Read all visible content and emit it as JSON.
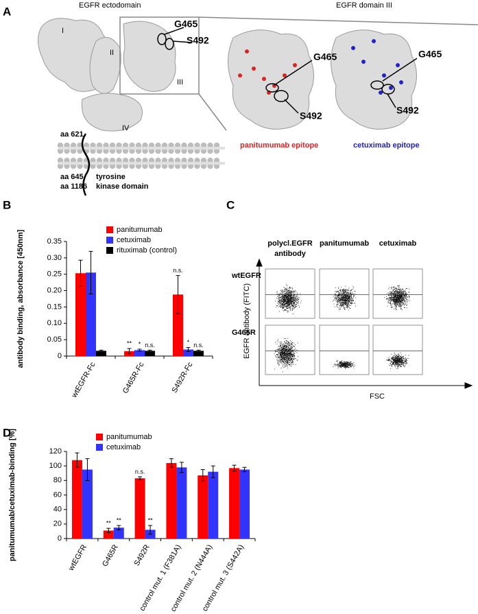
{
  "panel_labels": [
    "A",
    "B",
    "C",
    "D"
  ],
  "panel_a": {
    "left_title": "EGFR ectodomain",
    "right_title": "EGFR domain III",
    "domains": [
      "I",
      "II",
      "III",
      "IV"
    ],
    "box_labels": [
      "G465",
      "S492"
    ],
    "membrane_labels": [
      "aa 621",
      "aa 645",
      "aa 1186",
      "tyrosine",
      "kinase domain"
    ],
    "panitumumab_view": {
      "labels": [
        "G465",
        "S492"
      ],
      "caption": "panitumumab epitope"
    },
    "cetuximab_view": {
      "labels": [
        "G465",
        "S492"
      ],
      "caption": "cetuximab epitope"
    }
  },
  "panel_c": {
    "column_headers": [
      "polycl.EGFR",
      "antibody",
      "panitumumab",
      "cetuximab"
    ],
    "row_labels": [
      "wtEGFR",
      "G465R"
    ],
    "y_label": "EGFR antibody (FITC)",
    "x_label": "FSC"
  },
  "chart_data": [
    {
      "type": "bar",
      "y_label": "antibody binding, absorbance [450nm]",
      "categories": [
        "wtEGFR-Fc",
        "G465R-Fc",
        "S492R-Fc"
      ],
      "series": [
        {
          "name": "panitumumab",
          "color": "#ff0000",
          "values": [
            0.253,
            0.015,
            0.188
          ],
          "errors": [
            0.04,
            0.008,
            0.058
          ],
          "annotations": [
            null,
            "**",
            "n.s."
          ]
        },
        {
          "name": "cetuximab",
          "color": "#3333ff",
          "values": [
            0.255,
            0.018,
            0.02
          ],
          "errors": [
            0.065,
            0.003,
            0.006
          ],
          "annotations": [
            null,
            "*",
            "*"
          ]
        },
        {
          "name": "rituximab (control)",
          "color": "#000000",
          "values": [
            0.016,
            0.016,
            0.016
          ],
          "errors": [
            0.002,
            0.002,
            0.002
          ],
          "annotations": [
            null,
            "n.s.",
            "n.s."
          ]
        }
      ],
      "ylim": [
        0,
        0.35
      ],
      "yticks": [
        0,
        0.05,
        {
          "value": 0.1,
          "label": "0.10"
        },
        0.15,
        {
          "value": 0.2,
          "label": "0.20"
        },
        0.25,
        {
          "value": 0.3,
          "label": "0.30"
        },
        0.35
      ]
    },
    {
      "type": "bar",
      "y_label": "panitumumab/cetuximab-binding [%]",
      "categories": [
        "wtEGFR",
        "G465R",
        "S492R",
        "control mut. 1 (F381A)",
        "control mut. 2 (N444A)",
        "control mut. 3 (S442A)"
      ],
      "series": [
        {
          "name": "panitumumab",
          "color": "#ff0000",
          "values": [
            108,
            11,
            83,
            104,
            87,
            97
          ],
          "errors": [
            10,
            3,
            2,
            6,
            8,
            4
          ],
          "annotations": [
            null,
            "**",
            "n.s.",
            null,
            null,
            null
          ]
        },
        {
          "name": "cetuximab",
          "color": "#3333ff",
          "values": [
            95,
            15,
            12,
            98,
            92,
            95
          ],
          "errors": [
            15,
            3,
            6,
            7,
            8,
            3
          ],
          "annotations": [
            null,
            "**",
            "**",
            null,
            null,
            null
          ]
        }
      ],
      "ylim": [
        0,
        120
      ],
      "yticks": [
        0,
        20,
        40,
        60,
        80,
        100,
        120
      ]
    }
  ]
}
